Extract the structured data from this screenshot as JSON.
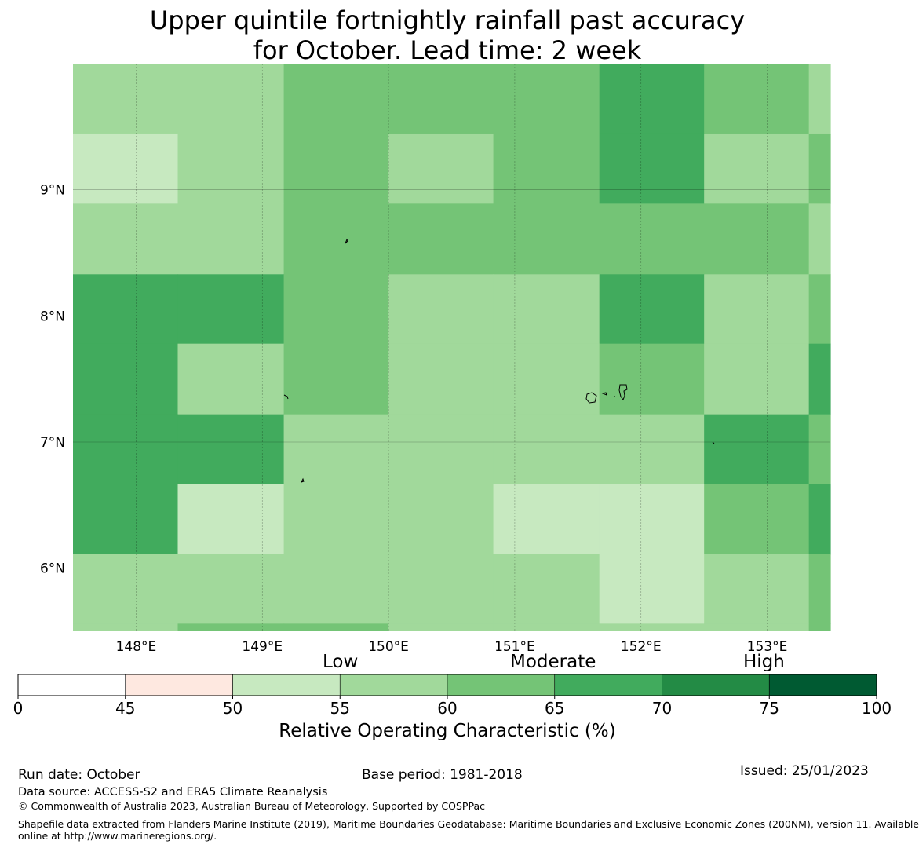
{
  "title": {
    "line1": "Upper quintile fortnightly rainfall past accuracy",
    "line2": "for October. Lead time: 2 week"
  },
  "map": {
    "lon_range": [
      147.5,
      153.5
    ],
    "lat_range": [
      5.5,
      10.0
    ],
    "lon_ticks": [
      "148°E",
      "149°E",
      "150°E",
      "151°E",
      "152°E",
      "153°E"
    ],
    "lat_ticks": [
      "9°N",
      "8°N",
      "7°N",
      "6°N"
    ],
    "grid_colors": {
      "50": "#c7e9c0",
      "55": "#a1d99b",
      "60": "#74c476",
      "65": "#41ab5d"
    },
    "grid_rows": [
      [
        55,
        55,
        60,
        60,
        60,
        65,
        60,
        55
      ],
      [
        50,
        55,
        60,
        55,
        60,
        65,
        55,
        60
      ],
      [
        55,
        55,
        60,
        60,
        60,
        60,
        60,
        55
      ],
      [
        65,
        65,
        60,
        55,
        55,
        65,
        55,
        60
      ],
      [
        65,
        55,
        60,
        55,
        55,
        60,
        55,
        65
      ],
      [
        65,
        65,
        55,
        55,
        55,
        55,
        65,
        60
      ],
      [
        65,
        50,
        55,
        55,
        50,
        50,
        60,
        65
      ],
      [
        55,
        55,
        55,
        55,
        55,
        50,
        55,
        60
      ]
    ]
  },
  "colorbar": {
    "categories": [
      "Low",
      "Moderate",
      "High"
    ],
    "ticks": [
      "0",
      "45",
      "50",
      "55",
      "60",
      "65",
      "70",
      "75",
      "100"
    ],
    "colors": [
      "#ffffff",
      "#fee8e0",
      "#c7e9c0",
      "#a1d99b",
      "#74c476",
      "#41ab5d",
      "#238b45",
      "#005a32"
    ],
    "label": "Relative Operating Characteristic (%)"
  },
  "footer": {
    "run_date": "Run date: October",
    "base_period": "Base period: 1981-2018",
    "issued": "Issued: 25/01/2023",
    "data_source": "Data source: ACCESS-S2 and ERA5 Climate Reanalysis",
    "copyright": "© Commonwealth of Australia 2023, Australian Bureau of Meteorology, Supported by COSPPac",
    "shapefile_line1": "Shapefile data extracted from Flanders Marine Institute (2019), Maritime Boundaries Geodatabase: Maritime Boundaries and Exclusive Economic Zones (200NM), version 11. Available",
    "shapefile_line2": "online at http://www.marineregions.org/."
  }
}
